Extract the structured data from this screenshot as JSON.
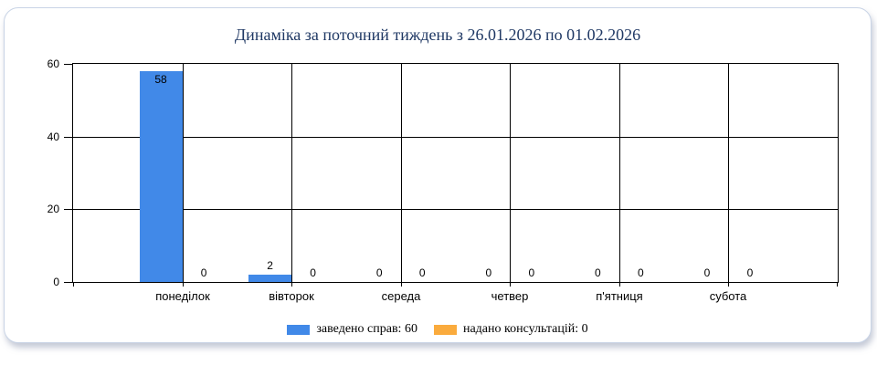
{
  "chart_data": {
    "type": "bar",
    "title": "Динаміка за поточний тиждень з 26.01.2026 по 01.02.2026",
    "categories": [
      "понеділок",
      "вівторок",
      "середа",
      "четвер",
      "п'ятниця",
      "субота"
    ],
    "series": [
      {
        "name": "заведено справ",
        "legend_label": "заведено справ: 60",
        "color": "#4189E8",
        "values": [
          58,
          2,
          0,
          0,
          0,
          0
        ]
      },
      {
        "name": "надано консультацій",
        "legend_label": "надано консультацій: 0",
        "color": "#FAAB3D",
        "values": [
          0,
          0,
          0,
          0,
          0,
          0
        ]
      }
    ],
    "ylim": [
      0,
      60
    ],
    "yticks": [
      0,
      20,
      40,
      60
    ],
    "grid": true,
    "legend_position": "bottom",
    "bar_value_labels": true,
    "xlabel": "",
    "ylabel": ""
  },
  "colors": {
    "title_text": "#1F3864",
    "axis": "#000000",
    "card_border": "#C9D4E6",
    "series_blue": "#4189E8",
    "series_orange": "#FAAB3D"
  }
}
